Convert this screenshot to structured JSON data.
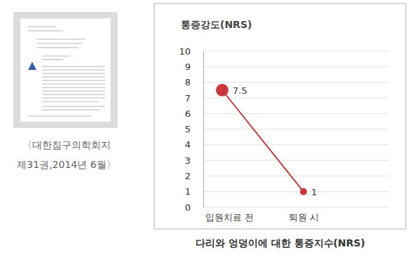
{
  "chart_data": {
    "type": "line",
    "title": "다리와 엉덩이에 대한 통증지수(NRS)",
    "ylabel": "통증강도(NRS)",
    "categories": [
      "입원치료 전",
      "퇴원 시"
    ],
    "values": [
      7.5,
      1
    ],
    "color": "#c8383c",
    "ylim": [
      0,
      10
    ],
    "yticks": [
      0,
      1,
      2,
      3,
      4,
      5,
      6,
      7,
      8,
      9,
      10
    ],
    "grid": true,
    "data_labels": true,
    "marker": "circle"
  },
  "source": {
    "journal": "〈대한침구의학회지",
    "issue": "제31권,2014년 6월〉"
  }
}
